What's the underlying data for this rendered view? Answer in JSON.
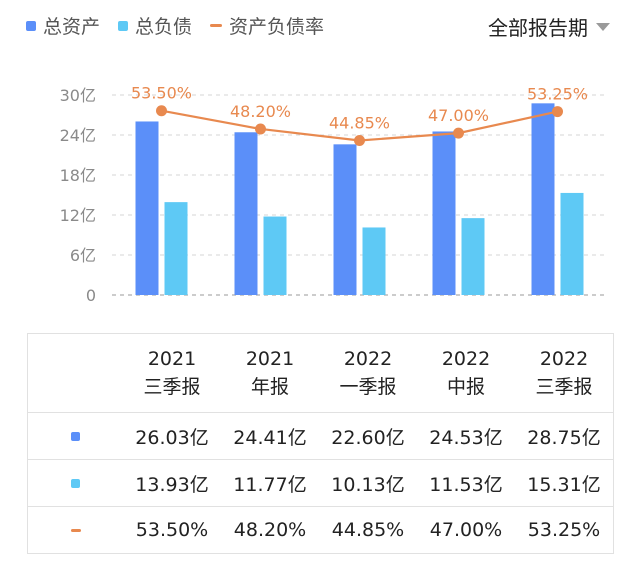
{
  "legend": {
    "items": [
      {
        "label": "总资产",
        "color": "#5b8ff9",
        "kind": "square"
      },
      {
        "label": "总负债",
        "color": "#5ec9f5",
        "kind": "square"
      },
      {
        "label": "资产负债率",
        "color": "#e8894f",
        "kind": "line"
      }
    ]
  },
  "period_selector": {
    "label": "全部报告期"
  },
  "chart_data": {
    "type": "bar",
    "categories": [
      "2021三季报",
      "2021年报",
      "2022一季报",
      "2022中报",
      "2022三季报"
    ],
    "series": [
      {
        "name": "总资产",
        "type": "bar",
        "unit": "亿",
        "values": [
          26.03,
          24.41,
          22.6,
          24.53,
          28.75
        ],
        "color": "#5b8ff9"
      },
      {
        "name": "总负债",
        "type": "bar",
        "unit": "亿",
        "values": [
          13.93,
          11.77,
          10.13,
          11.53,
          15.31
        ],
        "color": "#5ec9f5"
      },
      {
        "name": "资产负债率",
        "type": "line",
        "unit": "%",
        "values": [
          53.5,
          48.2,
          44.85,
          47.0,
          53.25
        ],
        "color": "#e8894f"
      }
    ],
    "ylim": [
      0,
      30
    ],
    "y_ticks": [
      "0",
      "6亿",
      "12亿",
      "18亿",
      "24亿",
      "30亿"
    ],
    "y_tick_values": [
      0,
      6,
      12,
      18,
      24,
      30
    ],
    "line_labels": [
      "53.50%",
      "48.20%",
      "44.85%",
      "47.00%",
      "53.25%"
    ],
    "grid": true
  },
  "table": {
    "headers": [
      {
        "line1": "2021",
        "line2": "三季报"
      },
      {
        "line1": "2021",
        "line2": "年报"
      },
      {
        "line1": "2022",
        "line2": "一季报"
      },
      {
        "line1": "2022",
        "line2": "中报"
      },
      {
        "line1": "2022",
        "line2": "三季报"
      }
    ],
    "rows": [
      {
        "series": "总资产",
        "color": "#5b8ff9",
        "kind": "square",
        "cells": [
          "26.03亿",
          "24.41亿",
          "22.60亿",
          "24.53亿",
          "28.75亿"
        ]
      },
      {
        "series": "总负债",
        "color": "#5ec9f5",
        "kind": "square",
        "cells": [
          "13.93亿",
          "11.77亿",
          "10.13亿",
          "11.53亿",
          "15.31亿"
        ]
      },
      {
        "series": "资产负债率",
        "color": "#e8894f",
        "kind": "line",
        "cells": [
          "53.50%",
          "48.20%",
          "44.85%",
          "47.00%",
          "53.25%"
        ]
      }
    ]
  }
}
